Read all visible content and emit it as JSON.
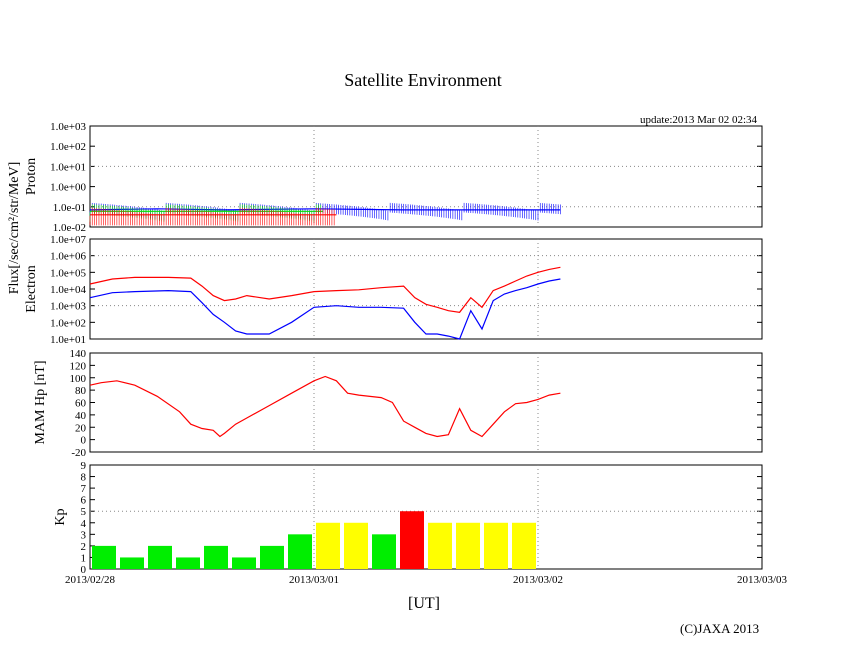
{
  "title": "Satellite Environment",
  "update": "update:2013 Mar 02 02:34",
  "copyright": "(C)JAXA 2013",
  "x_unit": "[UT]",
  "colors": {
    "red": "#ff0000",
    "blue": "#0000ff",
    "green": "#00e000",
    "yellow": "#ffff00"
  },
  "chart_data": [
    {
      "type": "line",
      "name": "Proton",
      "ylabel": "Proton",
      "shared_ylabel": "Flux[/sec/cm²/str/MeV]",
      "yscale": "log",
      "ylim": [
        0.01,
        1000
      ],
      "yticks": [
        "1.0e-02",
        "1.0e-01",
        "1.0e+00",
        "1.0e+01",
        "1.0e+02",
        "1.0e+03"
      ],
      "x_range_days": [
        0,
        3
      ],
      "series": [
        {
          "name": "blue",
          "color": "#0000ff",
          "x": [
            0,
            0.3,
            0.6,
            1.0,
            1.4,
            1.8,
            2.1
          ],
          "values": [
            0.07,
            0.08,
            0.07,
            0.08,
            0.07,
            0.07,
            0.07
          ]
        },
        {
          "name": "green",
          "color": "#00e000",
          "x": [
            0,
            0.3,
            0.6,
            0.9,
            1.04
          ],
          "values": [
            0.06,
            0.06,
            0.06,
            0.06,
            0.06
          ]
        },
        {
          "name": "red",
          "color": "#ff0000",
          "x": [
            0,
            0.3,
            0.6,
            0.9,
            1.1
          ],
          "values": [
            0.04,
            0.04,
            0.04,
            0.04,
            0.04
          ]
        }
      ]
    },
    {
      "type": "line",
      "name": "Electron",
      "ylabel": "Electron",
      "yscale": "log",
      "ylim": [
        10,
        10000000
      ],
      "yticks": [
        "1.0e+01",
        "1.0e+02",
        "1.0e+03",
        "1.0e+04",
        "1.0e+05",
        "1.0e+06",
        "1.0e+07"
      ],
      "x_range_days": [
        0,
        3
      ],
      "series": [
        {
          "name": "red",
          "color": "#ff0000",
          "x": [
            0,
            0.1,
            0.2,
            0.35,
            0.45,
            0.5,
            0.55,
            0.6,
            0.65,
            0.7,
            0.8,
            0.9,
            1.0,
            1.1,
            1.2,
            1.3,
            1.4,
            1.45,
            1.5,
            1.55,
            1.6,
            1.65,
            1.7,
            1.75,
            1.8,
            1.85,
            1.9,
            1.95,
            2.0,
            2.05,
            2.1
          ],
          "values": [
            20000,
            40000,
            50000,
            50000,
            45000,
            15000,
            4000,
            2000,
            2500,
            4000,
            2500,
            4000,
            7000,
            8000,
            9000,
            12000,
            15000,
            3000,
            1200,
            800,
            500,
            400,
            3000,
            800,
            8000,
            15000,
            30000,
            60000,
            100000,
            150000,
            200000
          ]
        },
        {
          "name": "blue",
          "color": "#0000ff",
          "x": [
            0,
            0.1,
            0.2,
            0.35,
            0.45,
            0.5,
            0.55,
            0.6,
            0.65,
            0.7,
            0.8,
            0.9,
            1.0,
            1.1,
            1.2,
            1.3,
            1.4,
            1.45,
            1.5,
            1.55,
            1.6,
            1.65,
            1.7,
            1.75,
            1.8,
            1.85,
            1.9,
            1.95,
            2.0,
            2.05,
            2.1
          ],
          "values": [
            3000,
            6000,
            7000,
            8000,
            7000,
            1500,
            300,
            100,
            30,
            20,
            20,
            100,
            800,
            1000,
            800,
            800,
            700,
            100,
            20,
            20,
            15,
            10,
            500,
            40,
            2000,
            5000,
            8000,
            12000,
            20000,
            30000,
            40000
          ]
        }
      ]
    },
    {
      "type": "line",
      "name": "MAM Hp",
      "ylabel": "MAM Hp [nT]",
      "ylim": [
        -20,
        140
      ],
      "yticks": [
        "-20",
        "0",
        "20",
        "40",
        "60",
        "80",
        "100",
        "120",
        "140"
      ],
      "x_range_days": [
        0,
        3
      ],
      "series": [
        {
          "name": "red",
          "color": "#ff0000",
          "x": [
            0,
            0.05,
            0.12,
            0.2,
            0.3,
            0.4,
            0.45,
            0.5,
            0.55,
            0.58,
            0.6,
            0.65,
            0.7,
            0.8,
            0.9,
            1.0,
            1.05,
            1.1,
            1.15,
            1.2,
            1.3,
            1.35,
            1.4,
            1.45,
            1.5,
            1.55,
            1.6,
            1.65,
            1.7,
            1.75,
            1.8,
            1.85,
            1.9,
            1.95,
            2.0,
            2.05,
            2.1
          ],
          "values": [
            88,
            92,
            95,
            88,
            70,
            45,
            25,
            18,
            15,
            5,
            10,
            25,
            35,
            55,
            75,
            95,
            102,
            95,
            75,
            72,
            68,
            60,
            30,
            20,
            10,
            5,
            8,
            50,
            15,
            5,
            25,
            45,
            58,
            60,
            65,
            72,
            75
          ]
        }
      ]
    },
    {
      "type": "bar",
      "name": "Kp",
      "ylabel": "Kp",
      "ylim": [
        0,
        9
      ],
      "yticks": [
        "0",
        "1",
        "2",
        "3",
        "4",
        "5",
        "6",
        "7",
        "8",
        "9"
      ],
      "x_range_days": [
        0,
        3
      ],
      "xticks": [
        "2013/02/28",
        "2013/03/01",
        "2013/03/02",
        "2013/03/03"
      ],
      "bar_width_hours": 3,
      "values": [
        2,
        1,
        2,
        1,
        2,
        1,
        2,
        3,
        4,
        4,
        3,
        5,
        4,
        4,
        4,
        4
      ],
      "colors": [
        "#00ee00",
        "#00ee00",
        "#00ee00",
        "#00ee00",
        "#00ee00",
        "#00ee00",
        "#00ee00",
        "#00ee00",
        "#ffff00",
        "#ffff00",
        "#00ee00",
        "#ff0000",
        "#ffff00",
        "#ffff00",
        "#ffff00",
        "#ffff00"
      ]
    }
  ]
}
